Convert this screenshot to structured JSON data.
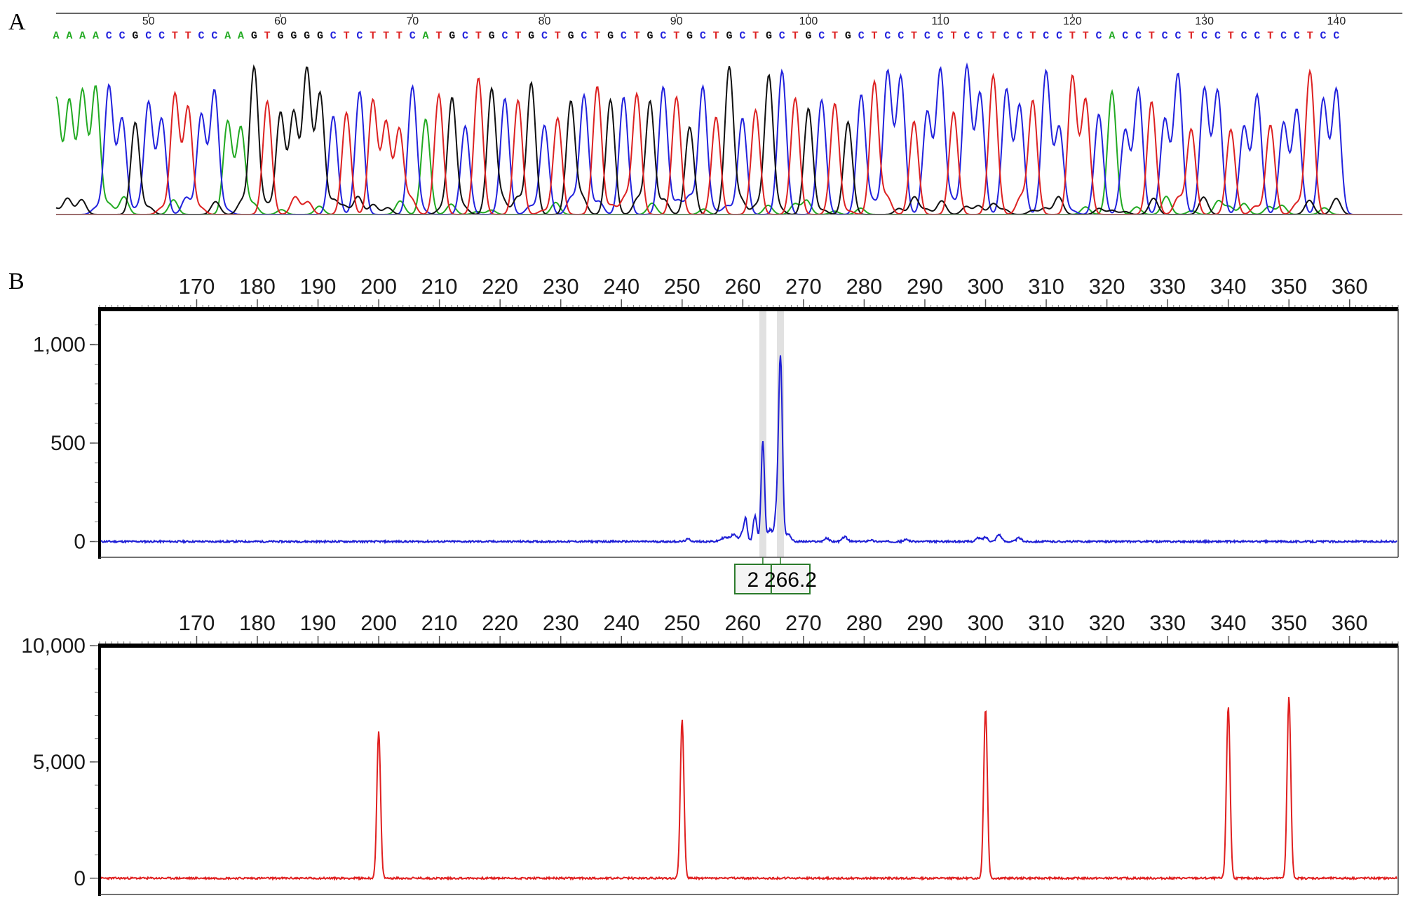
{
  "colors": {
    "A": "#22aa22",
    "C": "#2222dd",
    "G": "#111111",
    "T": "#dd2222",
    "fragment": "#1f1fd6",
    "standard": "#e02020"
  },
  "panels": {
    "a": "A",
    "b": "B"
  },
  "chart_data": [
    {
      "type": "line",
      "panel": "A",
      "xlim": [
        43,
        145
      ],
      "x_ticks": [
        50,
        60,
        70,
        80,
        90,
        100,
        110,
        120,
        130,
        140
      ],
      "x_tick_labels": [
        "50",
        "60",
        "70",
        "80",
        "90",
        "100",
        "110",
        "120",
        "130",
        "140"
      ],
      "sequence_start": 43,
      "sequence": "AAAACCGCCTTCCAAGTGGGGCTCTTTCATGCTGCTGCTGCTGCTGCTGCTGCTGCTGCTGCTCCTCCTCCTCCTCCTTCACCTCCTCCTCCTCCTCC",
      "legend": [
        {
          "base": "A",
          "color": "#22aa22"
        },
        {
          "base": "C",
          "color": "#2222dd"
        },
        {
          "base": "G",
          "color": "#111111"
        },
        {
          "base": "T",
          "color": "#dd2222"
        }
      ]
    },
    {
      "type": "line",
      "panel": "B",
      "xlim": [
        154,
        368
      ],
      "ylim": [
        -80,
        1180
      ],
      "x_ticks": [
        170,
        180,
        190,
        200,
        210,
        220,
        230,
        240,
        250,
        260,
        270,
        280,
        290,
        300,
        310,
        320,
        330,
        340,
        350,
        360
      ],
      "x_tick_labels": [
        "170",
        "180",
        "190",
        "200",
        "210",
        "220",
        "230",
        "240",
        "250",
        "260",
        "270",
        "280",
        "290",
        "300",
        "310",
        "320",
        "330",
        "340",
        "350",
        "360"
      ],
      "y_ticks": [
        0,
        500,
        1000
      ],
      "y_tick_labels": [
        "0",
        "500",
        "1,000"
      ],
      "series": [
        {
          "peaks": [
            {
              "x": 251.0,
              "h": 12,
              "w": 0.4
            },
            {
              "x": 257.0,
              "h": 20,
              "w": 0.6
            },
            {
              "x": 258.5,
              "h": 35,
              "w": 0.5
            },
            {
              "x": 260.0,
              "h": 50,
              "w": 0.4
            },
            {
              "x": 260.5,
              "h": 95,
              "w": 0.25
            },
            {
              "x": 262.0,
              "h": 130,
              "w": 0.3
            },
            {
              "x": 263.3,
              "h": 510,
              "w": 0.28
            },
            {
              "x": 264.5,
              "h": 60,
              "w": 0.4
            },
            {
              "x": 265.5,
              "h": 120,
              "w": 0.3
            },
            {
              "x": 266.2,
              "h": 940,
              "w": 0.32
            },
            {
              "x": 267.5,
              "h": 40,
              "w": 0.4
            },
            {
              "x": 273.8,
              "h": 16,
              "w": 0.4
            },
            {
              "x": 276.8,
              "h": 24,
              "w": 0.4
            },
            {
              "x": 281.0,
              "h": 8,
              "w": 0.4
            },
            {
              "x": 287.0,
              "h": 10,
              "w": 0.4
            },
            {
              "x": 298.8,
              "h": 18,
              "w": 0.4
            },
            {
              "x": 300.0,
              "h": 22,
              "w": 0.4
            },
            {
              "x": 302.2,
              "h": 36,
              "w": 0.4
            },
            {
              "x": 305.5,
              "h": 18,
              "w": 0.4
            }
          ]
        }
      ],
      "peak_labels": [
        {
          "x": 263.3,
          "text": "2"
        },
        {
          "x": 266.2,
          "text": "266.2"
        }
      ]
    },
    {
      "type": "line",
      "panel": "B",
      "xlim": [
        154,
        368
      ],
      "ylim": [
        -700,
        10000
      ],
      "x_ticks": [
        170,
        180,
        190,
        200,
        210,
        220,
        230,
        240,
        250,
        260,
        270,
        280,
        290,
        300,
        310,
        320,
        330,
        340,
        350,
        360
      ],
      "x_tick_labels": [
        "170",
        "180",
        "190",
        "200",
        "210",
        "220",
        "230",
        "240",
        "250",
        "260",
        "270",
        "280",
        "290",
        "300",
        "310",
        "320",
        "330",
        "340",
        "350",
        "360"
      ],
      "y_ticks": [
        0,
        5000,
        10000
      ],
      "y_tick_labels": [
        "0",
        "5,000",
        "10,000"
      ],
      "series": [
        {
          "peaks": [
            {
              "x": 200,
              "h": 6300
            },
            {
              "x": 250,
              "h": 6800
            },
            {
              "x": 300,
              "h": 7300
            },
            {
              "x": 340,
              "h": 7400
            },
            {
              "x": 350,
              "h": 7800
            }
          ]
        }
      ]
    }
  ]
}
